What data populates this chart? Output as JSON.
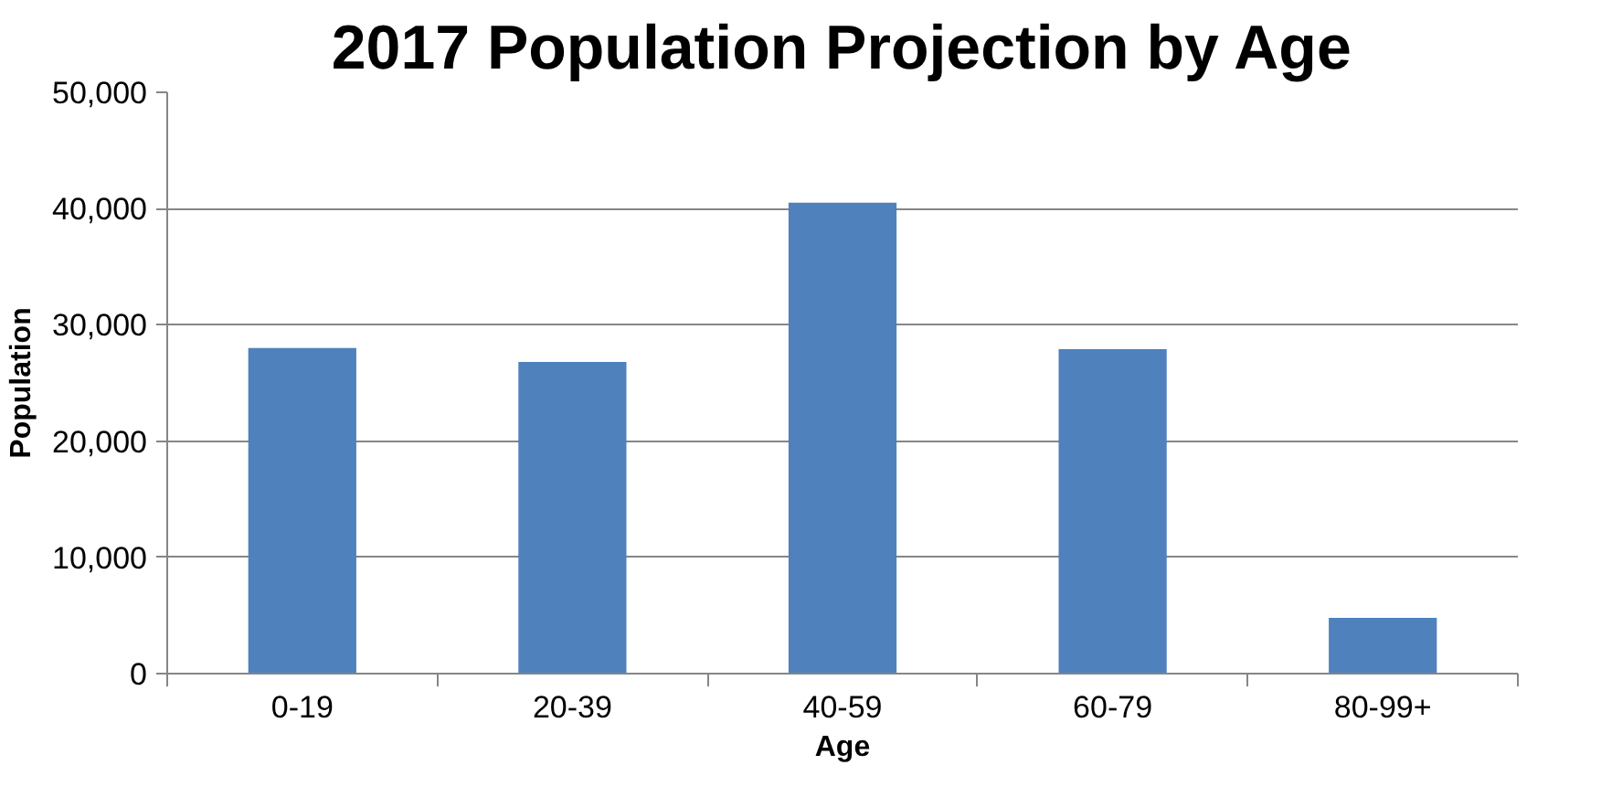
{
  "chart_data": {
    "type": "bar",
    "title": "2017 Population Projection by Age",
    "xlabel": "Age",
    "ylabel": "Population",
    "categories": [
      "0-19",
      "20-39",
      "40-59",
      "60-79",
      "80-99+"
    ],
    "values": [
      28000,
      26800,
      40500,
      27900,
      4800
    ],
    "color": "#4f81bd",
    "ylim": [
      0,
      50000
    ],
    "yticks": [
      {
        "value": 0,
        "label": "0"
      },
      {
        "value": 10000,
        "label": "10,000"
      },
      {
        "value": 20000,
        "label": "20,000"
      },
      {
        "value": 30000,
        "label": "30,000"
      },
      {
        "value": 40000,
        "label": "40,000"
      },
      {
        "value": 50000,
        "label": "50,000"
      }
    ],
    "grid": "y",
    "legend": false
  }
}
